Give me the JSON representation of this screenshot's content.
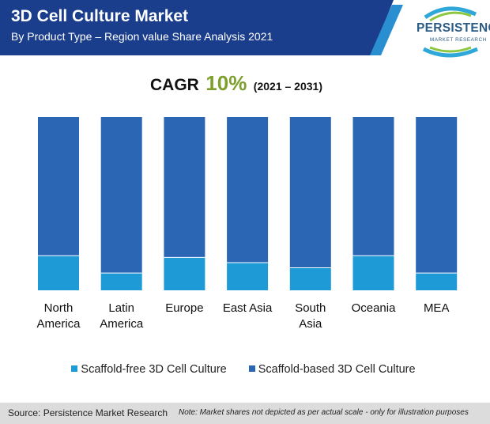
{
  "header": {
    "title": "3D Cell Culture Market",
    "subtitle": "By Product Type – Region value Share Analysis 2021"
  },
  "logo": {
    "word": "PERSISTENCE",
    "sub": "MARKET RESEARCH"
  },
  "cagr": {
    "label": "CAGR",
    "value": "10%",
    "period": "(2021 – 2031)"
  },
  "colors": {
    "banner": "#1a3e8c",
    "scaffold_free": "#1e9bd7",
    "scaffold_based": "#2b66b4",
    "cagr_value": "#7e9f2e"
  },
  "chart_data": {
    "type": "bar",
    "stacked": true,
    "categories": [
      "North America",
      "Latin America",
      "Europe",
      "East Asia",
      "South Asia",
      "Oceania",
      "MEA"
    ],
    "category_lines": [
      [
        "North",
        "America"
      ],
      [
        "Latin",
        "America"
      ],
      [
        "Europe"
      ],
      [
        "East Asia"
      ],
      [
        "South",
        "Asia"
      ],
      [
        "Oceania"
      ],
      [
        "MEA"
      ]
    ],
    "series": [
      {
        "name": "Scaffold-free 3D Cell Culture",
        "values": [
          20,
          10,
          19,
          16,
          13,
          20,
          10
        ]
      },
      {
        "name": "Scaffold-based 3D Cell Culture",
        "values": [
          80,
          90,
          81,
          84,
          87,
          80,
          90
        ]
      }
    ],
    "ylim": [
      0,
      100
    ],
    "grid": false,
    "legend": "bottom"
  },
  "footer": {
    "source": "Source: Persistence Market Research",
    "note": "Note: Market shares not depicted as per actual scale - only for illustration purposes"
  }
}
